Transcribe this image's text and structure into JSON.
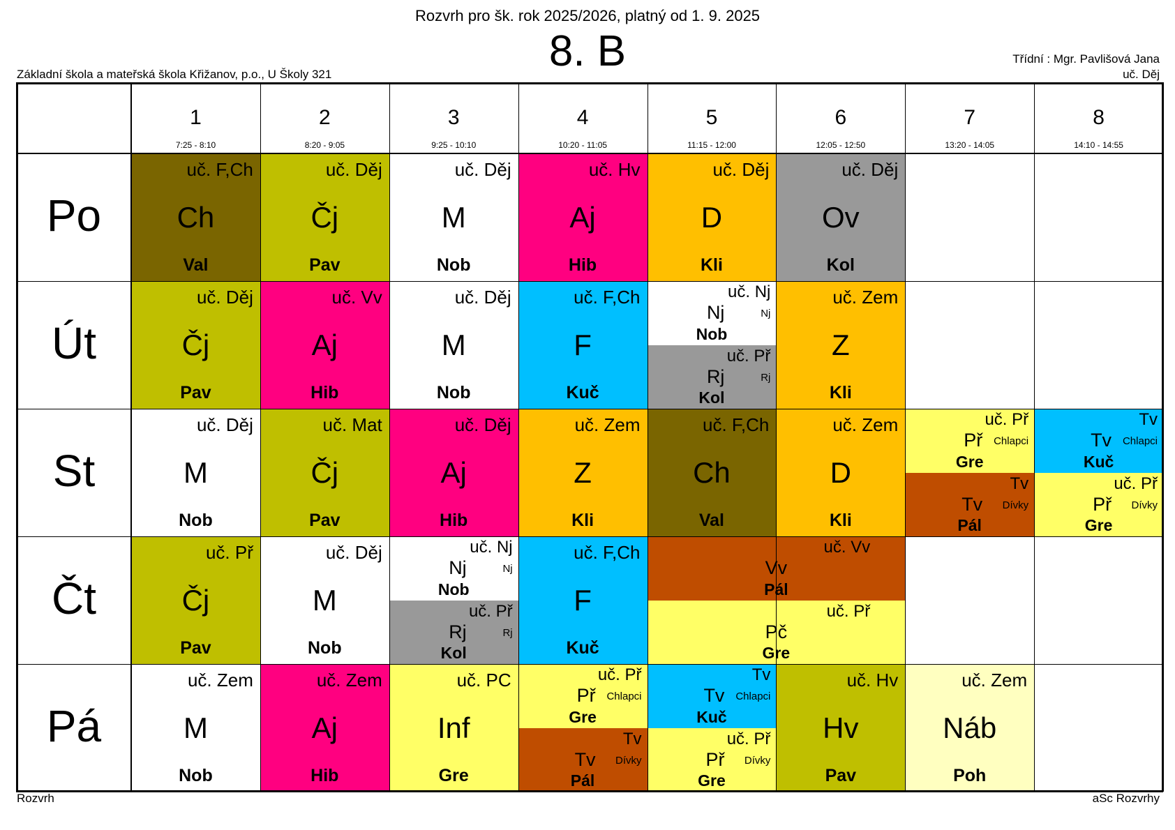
{
  "header": {
    "subtitle": "Rozvrh pro šk. rok 2025/2026, platný od 1. 9. 2025",
    "class_name": "8. B",
    "school": "Základní škola a mateřská škola Křižanov, p.o., U Školy 321",
    "homeroom_teacher": "Třídní : Mgr. Pavlišová Jana",
    "homeroom_room": "uč. Děj"
  },
  "footer": {
    "left": "Rozvrh",
    "right": "aSc Rozvrhy"
  },
  "periods": [
    {
      "num": "1",
      "time": "7:25 - 8:10"
    },
    {
      "num": "2",
      "time": "8:20 - 9:05"
    },
    {
      "num": "3",
      "time": "9:25 - 10:10"
    },
    {
      "num": "4",
      "time": "10:20 - 11:05"
    },
    {
      "num": "5",
      "time": "11:15 - 12:00"
    },
    {
      "num": "6",
      "time": "12:05 - 12:50"
    },
    {
      "num": "7",
      "time": "13:20 - 14:05"
    },
    {
      "num": "8",
      "time": "14:10 - 14:55"
    }
  ],
  "days": [
    "Po",
    "Út",
    "St",
    "Čt",
    "Pá"
  ],
  "colors": {
    "olive_dark": "#7a6500",
    "olive": "#bfbf00",
    "white": "#ffffff",
    "magenta": "#ff0080",
    "orange": "#ffbf00",
    "gray": "#999999",
    "cyan": "#00bfff",
    "brown": "#bf4d00",
    "yellow": "#ffff66",
    "cream": "#ffffc0"
  },
  "lessons": [
    {
      "day": 0,
      "period": 1,
      "span": 1,
      "part": "full",
      "subject": "Ch",
      "room": "uč. F,Ch",
      "teacher": "Val",
      "color": "#7a6500"
    },
    {
      "day": 0,
      "period": 2,
      "span": 1,
      "part": "full",
      "subject": "Čj",
      "room": "uč. Děj",
      "teacher": "Pav",
      "color": "#bfbf00"
    },
    {
      "day": 0,
      "period": 3,
      "span": 1,
      "part": "full",
      "subject": "M",
      "room": "uč. Děj",
      "teacher": "Nob",
      "color": "#ffffff"
    },
    {
      "day": 0,
      "period": 4,
      "span": 1,
      "part": "full",
      "subject": "Aj",
      "room": "uč. Hv",
      "teacher": "Hib",
      "color": "#ff0080"
    },
    {
      "day": 0,
      "period": 5,
      "span": 1,
      "part": "full",
      "subject": "D",
      "room": "uč. Děj",
      "teacher": "Kli",
      "color": "#ffbf00"
    },
    {
      "day": 0,
      "period": 6,
      "span": 1,
      "part": "full",
      "subject": "Ov",
      "room": "uč. Děj",
      "teacher": "Kol",
      "color": "#999999"
    },
    {
      "day": 1,
      "period": 1,
      "span": 1,
      "part": "full",
      "subject": "Čj",
      "room": "uč. Děj",
      "teacher": "Pav",
      "color": "#bfbf00"
    },
    {
      "day": 1,
      "period": 2,
      "span": 1,
      "part": "full",
      "subject": "Aj",
      "room": "uč. Vv",
      "teacher": "Hib",
      "color": "#ff0080"
    },
    {
      "day": 1,
      "period": 3,
      "span": 1,
      "part": "full",
      "subject": "M",
      "room": "uč. Děj",
      "teacher": "Nob",
      "color": "#ffffff"
    },
    {
      "day": 1,
      "period": 4,
      "span": 1,
      "part": "full",
      "subject": "F",
      "room": "uč. F,Ch",
      "teacher": "Kuč",
      "color": "#00bfff"
    },
    {
      "day": 1,
      "period": 5,
      "span": 1,
      "part": "top",
      "subject": "Nj",
      "group": "Nj",
      "room": "uč. Nj",
      "teacher": "Nob",
      "color": "#ffffff"
    },
    {
      "day": 1,
      "period": 5,
      "span": 1,
      "part": "bottom",
      "subject": "Rj",
      "group": "Rj",
      "room": "uč. Př",
      "teacher": "Kol",
      "color": "#999999"
    },
    {
      "day": 1,
      "period": 6,
      "span": 1,
      "part": "full",
      "subject": "Z",
      "room": "uč. Zem",
      "teacher": "Kli",
      "color": "#ffbf00"
    },
    {
      "day": 2,
      "period": 1,
      "span": 1,
      "part": "full",
      "subject": "M",
      "room": "uč. Děj",
      "teacher": "Nob",
      "color": "#ffffff"
    },
    {
      "day": 2,
      "period": 2,
      "span": 1,
      "part": "full",
      "subject": "Čj",
      "room": "uč. Mat",
      "teacher": "Pav",
      "color": "#bfbf00"
    },
    {
      "day": 2,
      "period": 3,
      "span": 1,
      "part": "full",
      "subject": "Aj",
      "room": "uč. Děj",
      "teacher": "Hib",
      "color": "#ff0080"
    },
    {
      "day": 2,
      "period": 4,
      "span": 1,
      "part": "full",
      "subject": "Z",
      "room": "uč. Zem",
      "teacher": "Kli",
      "color": "#ffbf00"
    },
    {
      "day": 2,
      "period": 5,
      "span": 1,
      "part": "full",
      "subject": "Ch",
      "room": "uč. F,Ch",
      "teacher": "Val",
      "color": "#7a6500"
    },
    {
      "day": 2,
      "period": 6,
      "span": 1,
      "part": "full",
      "subject": "D",
      "room": "uč. Zem",
      "teacher": "Kli",
      "color": "#ffbf00"
    },
    {
      "day": 2,
      "period": 7,
      "span": 1,
      "part": "top",
      "subject": "Př",
      "group": "Chlapci",
      "room": "uč. Př",
      "teacher": "Gre",
      "color": "#ffff66"
    },
    {
      "day": 2,
      "period": 7,
      "span": 1,
      "part": "bottom",
      "subject": "Tv",
      "group": "Dívky",
      "room": "Tv",
      "teacher": "Pál",
      "color": "#bf4d00"
    },
    {
      "day": 2,
      "period": 8,
      "span": 1,
      "part": "top",
      "subject": "Tv",
      "group": "Chlapci",
      "room": "Tv",
      "teacher": "Kuč",
      "color": "#00bfff"
    },
    {
      "day": 2,
      "period": 8,
      "span": 1,
      "part": "bottom",
      "subject": "Př",
      "group": "Dívky",
      "room": "uč. Př",
      "teacher": "Gre",
      "color": "#ffff66"
    },
    {
      "day": 3,
      "period": 1,
      "span": 1,
      "part": "full",
      "subject": "Čj",
      "room": "uč. Př",
      "teacher": "Pav",
      "color": "#bfbf00"
    },
    {
      "day": 3,
      "period": 2,
      "span": 1,
      "part": "full",
      "subject": "M",
      "room": "uč. Děj",
      "teacher": "Nob",
      "color": "#ffffff"
    },
    {
      "day": 3,
      "period": 3,
      "span": 1,
      "part": "top",
      "subject": "Nj",
      "group": "Nj",
      "room": "uč. Nj",
      "teacher": "Nob",
      "color": "#ffffff"
    },
    {
      "day": 3,
      "period": 3,
      "span": 1,
      "part": "bottom",
      "subject": "Rj",
      "group": "Rj",
      "room": "uč. Př",
      "teacher": "Kol",
      "color": "#999999"
    },
    {
      "day": 3,
      "period": 4,
      "span": 1,
      "part": "full",
      "subject": "F",
      "room": "uč. F,Ch",
      "teacher": "Kuč",
      "color": "#00bfff"
    },
    {
      "day": 3,
      "period": 5,
      "span": 2,
      "part": "top",
      "subject": "Vv",
      "group": "",
      "room": "uč. Vv",
      "teacher": "Pál",
      "color": "#bf4d00"
    },
    {
      "day": 3,
      "period": 5,
      "span": 2,
      "part": "bottom",
      "subject": "Pč",
      "group": "",
      "room": "uč. Př",
      "teacher": "Gre",
      "color": "#ffff66"
    },
    {
      "day": 4,
      "period": 1,
      "span": 1,
      "part": "full",
      "subject": "M",
      "room": "uč. Zem",
      "teacher": "Nob",
      "color": "#ffffff"
    },
    {
      "day": 4,
      "period": 2,
      "span": 1,
      "part": "full",
      "subject": "Aj",
      "room": "uč. Zem",
      "teacher": "Hib",
      "color": "#ff0080"
    },
    {
      "day": 4,
      "period": 3,
      "span": 1,
      "part": "full",
      "subject": "Inf",
      "room": "uč. PC",
      "teacher": "Gre",
      "color": "#ffff66"
    },
    {
      "day": 4,
      "period": 4,
      "span": 1,
      "part": "top",
      "subject": "Př",
      "group": "Chlapci",
      "room": "uč. Př",
      "teacher": "Gre",
      "color": "#ffff66"
    },
    {
      "day": 4,
      "period": 4,
      "span": 1,
      "part": "bottom",
      "subject": "Tv",
      "group": "Dívky",
      "room": "Tv",
      "teacher": "Pál",
      "color": "#bf4d00"
    },
    {
      "day": 4,
      "period": 5,
      "span": 1,
      "part": "top",
      "subject": "Tv",
      "group": "Chlapci",
      "room": "Tv",
      "teacher": "Kuč",
      "color": "#00bfff"
    },
    {
      "day": 4,
      "period": 5,
      "span": 1,
      "part": "bottom",
      "subject": "Př",
      "group": "Dívky",
      "room": "uč. Př",
      "teacher": "Gre",
      "color": "#ffff66"
    },
    {
      "day": 4,
      "period": 6,
      "span": 1,
      "part": "full",
      "subject": "Hv",
      "room": "uč. Hv",
      "teacher": "Pav",
      "color": "#bfbf00"
    },
    {
      "day": 4,
      "period": 7,
      "span": 1,
      "part": "full",
      "subject": "Náb",
      "room": "uč. Zem",
      "teacher": "Poh",
      "color": "#ffffc0"
    }
  ]
}
